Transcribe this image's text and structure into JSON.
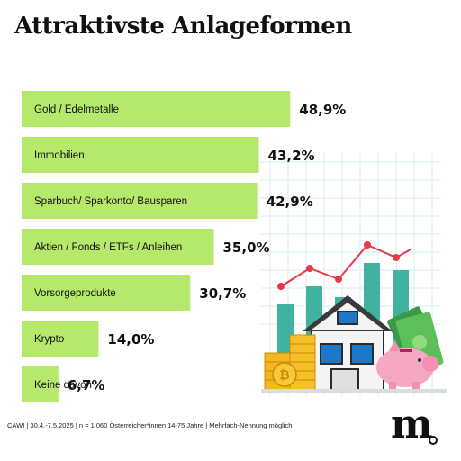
{
  "title": "Attraktivste Anlageformen",
  "footnote": "CAWI | 30.4.-7.5.2025 | n = 1.060 Österreicher*innen 14-75 Jahre | Mehrfach-Nennung möglich",
  "logo": "m",
  "colors": {
    "bar": "#b5e86b",
    "text": "#111111"
  },
  "illustration": {
    "icons": [
      "bar-chart-icon",
      "line-chart-icon",
      "house-icon",
      "coin-stack-icon",
      "bitcoin-icon",
      "piggy-bank-icon",
      "money-bills-icon"
    ]
  },
  "chart_data": {
    "type": "bar",
    "orientation": "horizontal",
    "title": "Attraktivste Anlageformen",
    "categories": [
      "Gold / Edelmetalle",
      "Immobilien",
      "Sparbuch/ Sparkonto/ Bausparen",
      "Aktien / Fonds / ETFs / Anleihen",
      "Vorsorgeprodukte",
      "Krypto",
      "Keine davon"
    ],
    "values": [
      48.9,
      43.2,
      42.9,
      35.0,
      30.7,
      14.0,
      6.7
    ],
    "value_labels": [
      "48,9%",
      "43,2%",
      "42,9%",
      "35,0%",
      "30,7%",
      "14,0%",
      "6,7%"
    ],
    "xlabel": "",
    "ylabel": "",
    "grid": false
  }
}
